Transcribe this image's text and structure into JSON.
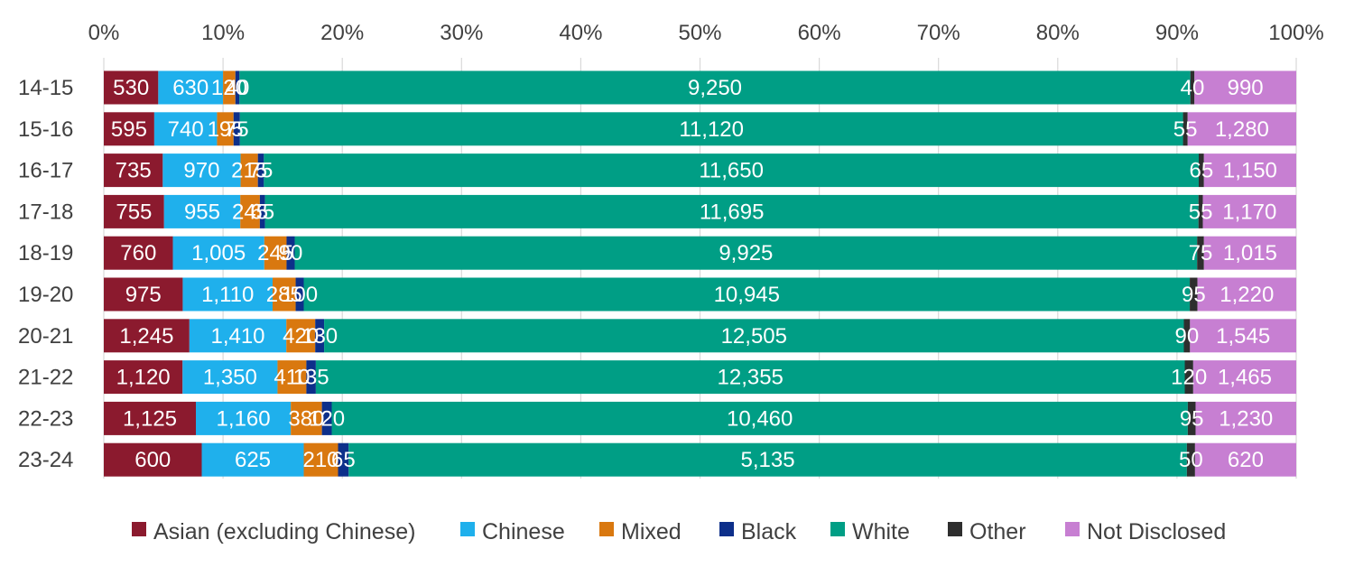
{
  "chart_data": {
    "type": "bar",
    "orientation": "horizontal",
    "stacked": "percent",
    "title": "",
    "xlabel": "",
    "ylabel": "",
    "xlim": [
      0,
      100
    ],
    "x_tick_labels": [
      "0%",
      "10%",
      "20%",
      "30%",
      "40%",
      "50%",
      "60%",
      "70%",
      "80%",
      "90%",
      "100%"
    ],
    "grid": true,
    "legend_position": "bottom",
    "categories": [
      "14-15",
      "15-16",
      "16-17",
      "17-18",
      "18-19",
      "19-20",
      "20-21",
      "21-22",
      "22-23",
      "23-24"
    ],
    "series": [
      {
        "name": "Asian (excluding Chinese)",
        "color": "#8b1a2e",
        "values": [
          530,
          595,
          735,
          755,
          760,
          975,
          1245,
          1120,
          1125,
          600
        ]
      },
      {
        "name": "Chinese",
        "color": "#1fb0ec",
        "values": [
          630,
          740,
          970,
          955,
          1005,
          1110,
          1410,
          1350,
          1160,
          625
        ]
      },
      {
        "name": "Mixed",
        "color": "#d9780f",
        "values": [
          120,
          195,
          215,
          245,
          245,
          285,
          420,
          410,
          380,
          210
        ]
      },
      {
        "name": "Black",
        "color": "#0d2f8a",
        "values": [
          40,
          75,
          75,
          65,
          90,
          100,
          130,
          135,
          120,
          65
        ]
      },
      {
        "name": "White",
        "color": "#009e85",
        "values": [
          9250,
          11120,
          11650,
          11695,
          9925,
          10945,
          12505,
          12355,
          10460,
          5135
        ]
      },
      {
        "name": "Other",
        "color": "#2e2e2e",
        "values": [
          40,
          55,
          65,
          55,
          75,
          95,
          90,
          120,
          95,
          50
        ]
      },
      {
        "name": "Not Disclosed",
        "color": "#c77fd2",
        "values": [
          990,
          1280,
          1150,
          1170,
          1015,
          1220,
          1545,
          1465,
          1230,
          620
        ]
      }
    ]
  }
}
